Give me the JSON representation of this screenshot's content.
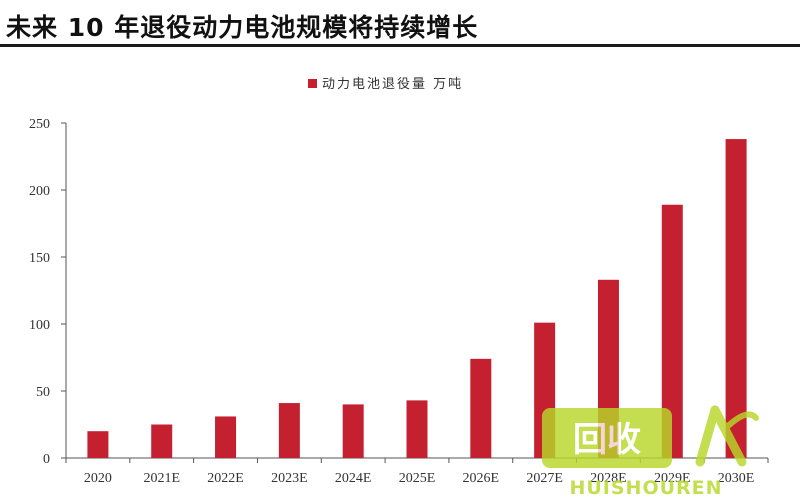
{
  "page_title": "未来 10 年退役动力电池规模将持续增长",
  "colors": {
    "bar": "#c4202f",
    "axis": "#555555",
    "watermark": "#b9d72a"
  },
  "watermark": {
    "logo_text": "回收",
    "brand_text": "HUISHOUREN",
    "icon": "person-leaf-icon"
  },
  "chart_data": {
    "type": "bar",
    "title": "",
    "xlabel": "",
    "ylabel": "",
    "categories": [
      "2020",
      "2021E",
      "2022E",
      "2023E",
      "2024E",
      "2025E",
      "2026E",
      "2027E",
      "2028E",
      "2029E",
      "2030E"
    ],
    "series": [
      {
        "name": "动力电池退役量 万吨",
        "values": [
          20,
          25,
          31,
          41,
          40,
          43,
          74,
          101,
          133,
          189,
          238
        ]
      }
    ],
    "ylim": [
      0,
      250
    ],
    "yticks": [
      0,
      50,
      100,
      150,
      200,
      250
    ],
    "grid": false,
    "legend": "top-center"
  }
}
